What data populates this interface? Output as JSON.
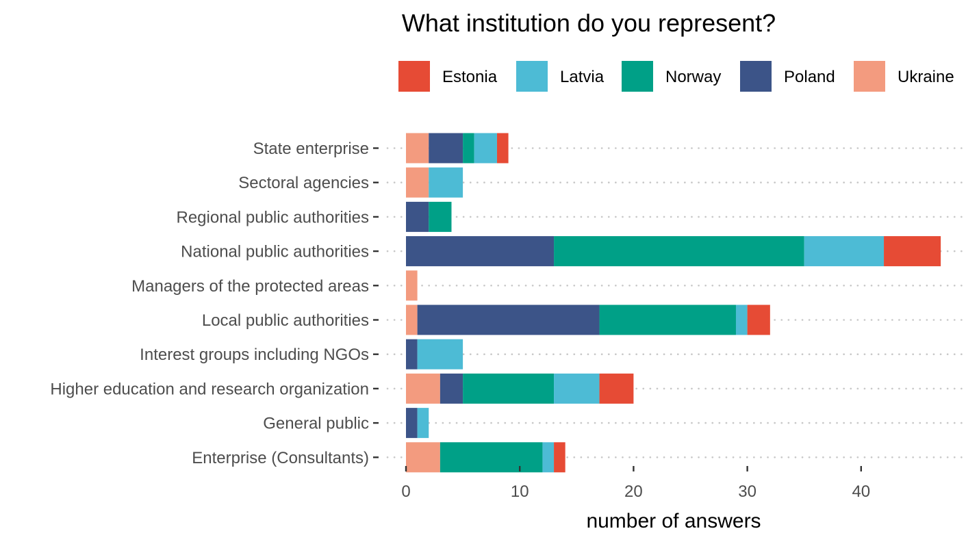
{
  "chart_data": {
    "type": "bar",
    "orientation": "horizontal",
    "stacked": true,
    "title": "What institution do you represent?",
    "xlabel": "number of answers",
    "ylabel": "",
    "xlim": [
      0,
      49
    ],
    "x_ticks": [
      0,
      10,
      20,
      30,
      40
    ],
    "grid": "dotted horizontal guides per category",
    "legend_position": "top",
    "categories": [
      "State enterprise",
      "Sectoral agencies",
      "Regional public authorities",
      "National public authorities",
      "Managers of the protected areas",
      "Local public authorities",
      "Interest groups including NGOs",
      "Higher education and research organization",
      "General public",
      "Enterprise (Consultants)"
    ],
    "legend_order": [
      "Estonia",
      "Latvia",
      "Norway",
      "Poland",
      "Ukraine"
    ],
    "series": [
      {
        "name": "Ukraine",
        "color": "#F39B7F",
        "values": [
          2,
          2,
          0,
          0,
          1,
          1,
          0,
          3,
          0,
          3
        ]
      },
      {
        "name": "Poland",
        "color": "#3C5488",
        "values": [
          3,
          0,
          2,
          13,
          0,
          16,
          1,
          2,
          1,
          0
        ]
      },
      {
        "name": "Norway",
        "color": "#00A087",
        "values": [
          1,
          0,
          2,
          22,
          0,
          12,
          0,
          8,
          0,
          9
        ]
      },
      {
        "name": "Latvia",
        "color": "#4DBBD5",
        "values": [
          2,
          3,
          0,
          7,
          0,
          1,
          4,
          4,
          1,
          1
        ]
      },
      {
        "name": "Estonia",
        "color": "#E64B35",
        "values": [
          1,
          0,
          0,
          5,
          0,
          2,
          0,
          3,
          0,
          1
        ]
      }
    ]
  }
}
